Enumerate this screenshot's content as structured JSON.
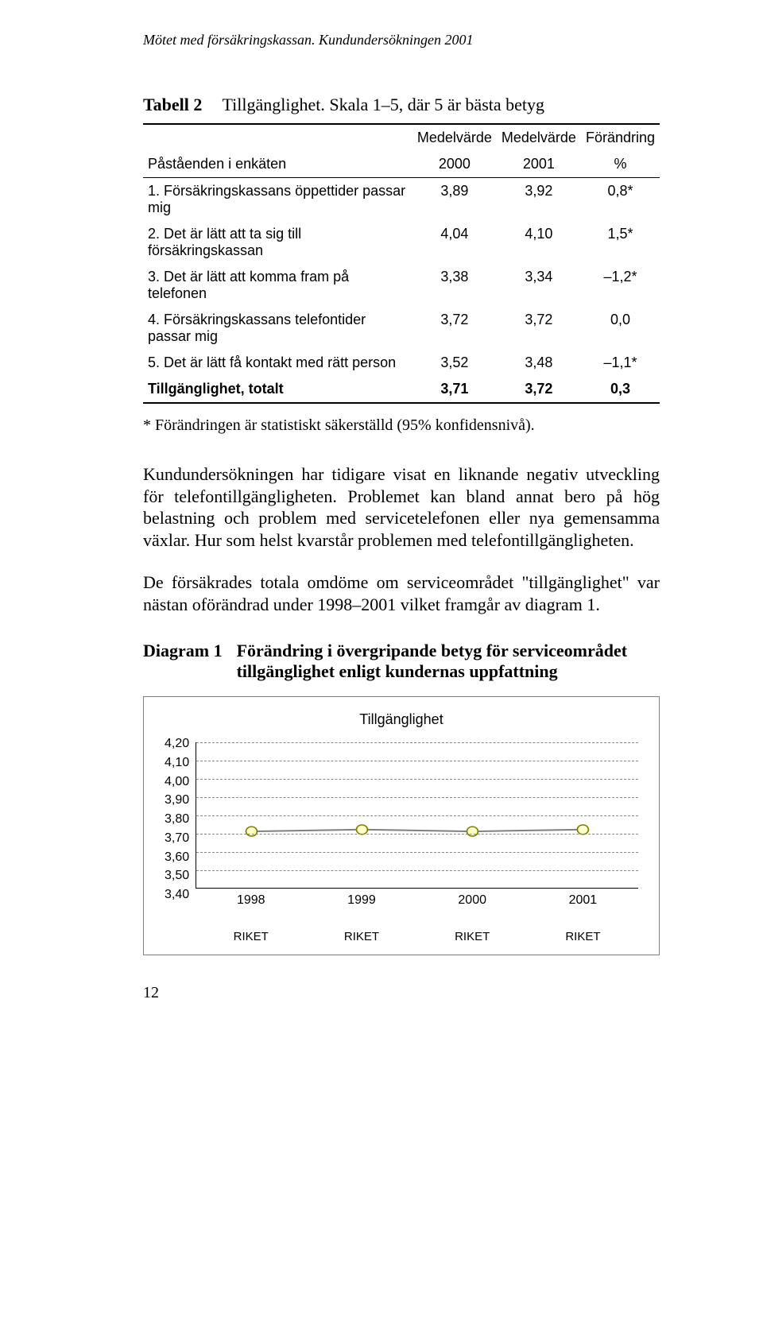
{
  "running_header": "Mötet med försäkringskassan. Kundundersökningen 2001",
  "table": {
    "label": "Tabell 2",
    "title": "Tillgänglighet. Skala 1–5, där 5 är bästa betyg",
    "col_headers": {
      "stmt": "Påståenden i enkäten",
      "m2000_top": "Medelvärde",
      "m2000_bot": "2000",
      "m2001_top": "Medelvärde",
      "m2001_bot": "2001",
      "chg_top": "Förändring",
      "chg_bot": "%"
    },
    "rows": [
      {
        "stmt": "1. Försäkringskassans öppettider passar mig",
        "v2000": "3,89",
        "v2001": "3,92",
        "chg": "0,8*"
      },
      {
        "stmt": "2. Det är lätt att ta sig till försäkringskassan",
        "v2000": "4,04",
        "v2001": "4,10",
        "chg": "1,5*"
      },
      {
        "stmt": "3. Det är lätt att komma fram på telefonen",
        "v2000": "3,38",
        "v2001": "3,34",
        "chg": "–1,2*"
      },
      {
        "stmt": "4. Försäkringskassans telefontider passar mig",
        "v2000": "3,72",
        "v2001": "3,72",
        "chg": "0,0"
      },
      {
        "stmt": "5. Det är lätt få kontakt med rätt person",
        "v2000": "3,52",
        "v2001": "3,48",
        "chg": "–1,1*"
      }
    ],
    "total": {
      "stmt": "Tillgänglighet, totalt",
      "v2000": "3,71",
      "v2001": "3,72",
      "chg": "0,3"
    },
    "footnote": "* Förändringen är statistiskt säkerställd (95% konfidensnivå)."
  },
  "body_paragraphs": [
    "Kundundersökningen har tidigare visat en liknande negativ utveckling för telefontillgängligheten. Problemet kan bland annat bero på hög belastning och problem med servicetelefonen eller nya gemensamma växlar. Hur som helst kvarstår problemen med telefontillgängligheten.",
    "De försäkrades totala omdöme om serviceområdet \"tillgänglighet\" var nästan oförändrad under 1998–2001 vilket framgår av diagram 1."
  ],
  "diagram": {
    "label": "Diagram 1",
    "title": "Förändring i övergripande betyg för serviceområdet tillgänglighet enligt kundernas uppfattning",
    "chart_title": "Tillgänglighet",
    "y_min": 3.4,
    "y_max": 4.2,
    "y_ticks": [
      "4,20",
      "4,10",
      "4,00",
      "3,90",
      "3,80",
      "3,70",
      "3,60",
      "3,50",
      "3,40"
    ],
    "x_labels_top": [
      "1998",
      "1999",
      "2000",
      "2001"
    ],
    "x_labels_bottom": [
      "RIKET",
      "RIKET",
      "RIKET",
      "RIKET"
    ],
    "series": {
      "values": [
        3.71,
        3.72,
        3.71,
        3.72
      ],
      "line_color": "#808080",
      "line_width": 2,
      "marker_fill": "#ffffcc",
      "marker_stroke": "#808000",
      "marker_radius": 6
    },
    "grid_color": "#888888",
    "background_color": "#ffffff"
  },
  "page_number": "12"
}
